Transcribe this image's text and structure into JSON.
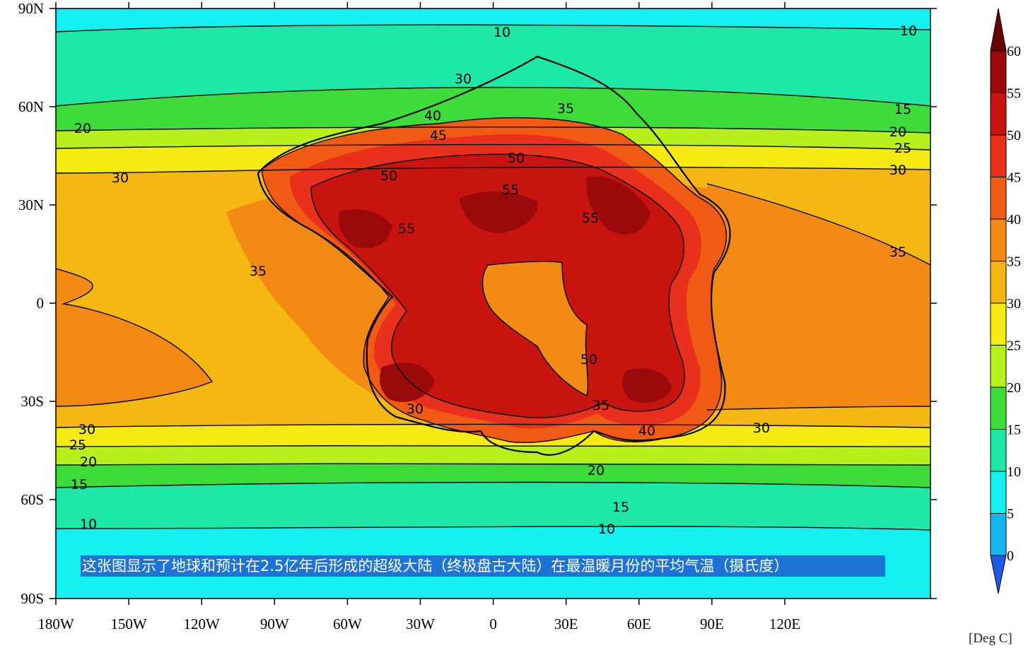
{
  "map": {
    "lat_labels": [
      "90N",
      "60N",
      "30N",
      "0",
      "30S",
      "60S",
      "90S"
    ],
    "lon_labels": [
      "180W",
      "150W",
      "120W",
      "90W",
      "60W",
      "30W",
      "0",
      "30E",
      "60E",
      "90E",
      "120E"
    ],
    "contour_labels": [
      "10",
      "10",
      "20",
      "20",
      "15",
      "25",
      "30",
      "30",
      "35",
      "35",
      "50",
      "55",
      "45",
      "50",
      "55",
      "40",
      "30",
      "35",
      "35",
      "30",
      "25",
      "20",
      "15",
      "10",
      "15",
      "10",
      "20",
      "40",
      "50",
      "55",
      "30",
      "30"
    ],
    "colorbar": {
      "levels": [
        "60",
        "55",
        "50",
        "45",
        "40",
        "35",
        "30",
        "25",
        "20",
        "15",
        "10",
        "5",
        "0"
      ],
      "colors": [
        "#6b0000",
        "#9a0a0a",
        "#c8140f",
        "#e8301c",
        "#f05a14",
        "#f28a14",
        "#f5b812",
        "#f5eb12",
        "#b8f01e",
        "#3edc3a",
        "#1ee8a8",
        "#14f0f0",
        "#18b4f0",
        "#1e5ae6"
      ],
      "units": "[Deg C]"
    },
    "caption": "这张图显示了地球和预计在2.5亿年后形成的超级大陆（终极盘古大陆）在最温暖月份的平均气温（摄氏度）"
  }
}
